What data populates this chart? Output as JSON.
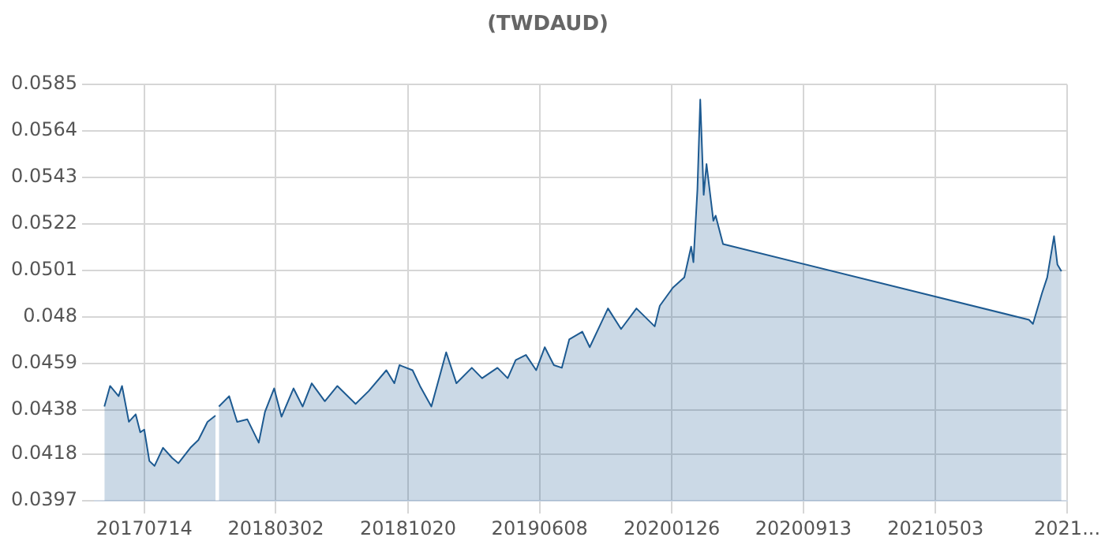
{
  "chart_data": {
    "type": "area",
    "title": "(TWDAUD)",
    "x": [
      "2017-05-05",
      "2017-05-15",
      "2017-05-30",
      "2017-06-05",
      "2017-06-17",
      "2017-06-29",
      "2017-07-07",
      "2017-07-14",
      "2017-07-23",
      "2017-08-01",
      "2017-08-16",
      "2017-09-01",
      "2017-09-12",
      "2017-10-03",
      "2017-10-17",
      "2017-11-02",
      "2017-11-16",
      "2017-11-19",
      "2017-11-22",
      "2017-12-10",
      "2017-12-24",
      "2018-01-11",
      "2018-01-31",
      "2018-02-11",
      "2018-02-27",
      "2018-03-12",
      "2018-04-02",
      "2018-04-18",
      "2018-05-04",
      "2018-05-27",
      "2018-06-18",
      "2018-07-20",
      "2018-08-12",
      "2018-09-12",
      "2018-09-26",
      "2018-10-05",
      "2018-10-28",
      "2018-11-10",
      "2018-11-30",
      "2018-12-26",
      "2019-01-13",
      "2019-02-09",
      "2019-02-27",
      "2019-03-26",
      "2019-04-13",
      "2019-04-27",
      "2019-05-15",
      "2019-06-02",
      "2019-06-17",
      "2019-07-03",
      "2019-07-17",
      "2019-07-30",
      "2019-08-22",
      "2019-09-04",
      "2019-10-06",
      "2019-10-29",
      "2019-11-25",
      "2019-12-27",
      "2020-01-05",
      "2020-01-28",
      "2020-02-17",
      "2020-02-29",
      "2020-03-04",
      "2020-03-11",
      "2020-03-16",
      "2020-03-22",
      "2020-03-27",
      "2020-04-08",
      "2020-04-12",
      "2020-04-25",
      "2021-10-14",
      "2021-10-21",
      "2021-11-06",
      "2021-11-15",
      "2021-11-27",
      "2021-12-03",
      "2021-12-10"
    ],
    "series": [
      {
        "color": "#1d5a91",
        "values": [
          0.04396,
          0.04489,
          0.04443,
          0.04489,
          0.04327,
          0.04361,
          0.0428,
          0.04292,
          0.0415,
          0.04128,
          0.0421,
          0.04164,
          0.0414,
          0.0421,
          0.04245,
          0.04327,
          0.04355,
          null,
          0.04396,
          0.04443,
          0.04327,
          0.04338,
          0.04233,
          0.04373,
          0.04478,
          0.0435,
          0.04478,
          0.04396,
          0.04501,
          0.0442,
          0.04489,
          0.04408,
          0.04466,
          0.0456,
          0.04501,
          0.04583,
          0.0456,
          0.04489,
          0.04396,
          0.04641,
          0.04501,
          0.04571,
          0.04524,
          0.04571,
          0.04524,
          0.04606,
          0.04629,
          0.0456,
          0.04664,
          0.04583,
          0.04571,
          0.04699,
          0.04734,
          0.04664,
          0.04839,
          0.04746,
          0.04839,
          0.04758,
          0.04851,
          0.04933,
          0.04979,
          0.05118,
          0.05048,
          0.05375,
          0.05782,
          0.05352,
          0.05491,
          0.05235,
          0.05258,
          0.0513,
          0.04788,
          0.04769,
          0.04909,
          0.04979,
          0.05165,
          0.05037,
          0.05007
        ]
      }
    ],
    "xlim": [
      "2017-04-18",
      "2021-12-20"
    ],
    "xticks": [
      {
        "value": "2017-07-14",
        "label": "20170714"
      },
      {
        "value": "2018-03-02",
        "label": "20180302"
      },
      {
        "value": "2018-10-20",
        "label": "20181020"
      },
      {
        "value": "2019-06-08",
        "label": "20190608"
      },
      {
        "value": "2020-01-26",
        "label": "20200126"
      },
      {
        "value": "2020-09-13",
        "label": "20200913"
      },
      {
        "value": "2021-05-03",
        "label": "20210503"
      },
      {
        "value": "2021-12-20",
        "label": "2021..."
      }
    ],
    "ylim": [
      0.0397,
      0.0585
    ],
    "yticks": [
      0.0397,
      0.0418,
      0.0438,
      0.0459,
      0.048,
      0.0501,
      0.0522,
      0.0543,
      0.0564,
      0.0585
    ],
    "grid": true,
    "legend": false,
    "marker": "none",
    "line_style": "solid"
  }
}
